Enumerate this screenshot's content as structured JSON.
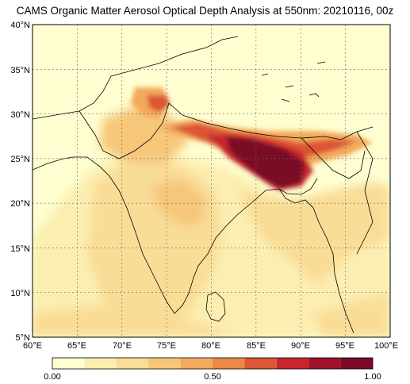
{
  "title": "CAMS Organic Matter Aerosol Optical Depth Analysis at 550nm: 20210116, 00z",
  "map": {
    "lon_range": [
      60,
      100
    ],
    "lat_range": [
      5,
      40
    ],
    "lon_ticks": [
      "60°E",
      "65°E",
      "70°E",
      "75°E",
      "80°E",
      "85°E",
      "90°E",
      "95°E",
      "100°E"
    ],
    "lat_ticks": [
      "40°N",
      "35°N",
      "30°N",
      "25°N",
      "20°N",
      "15°N",
      "10°N",
      "5°N"
    ],
    "gridlines": true
  },
  "colorbar": {
    "labels": [
      "0.00",
      "0.50",
      "1.00"
    ],
    "colors": [
      "#fefed0",
      "#fbeeb0",
      "#f9dc96",
      "#f6c779",
      "#f2aa5c",
      "#ec8845",
      "#dd5535",
      "#c9262c",
      "#a0122c",
      "#7a0a28"
    ]
  },
  "colors": {
    "coast": "#000000",
    "grid": "#666666",
    "low": "#fefed0",
    "medium": "#f2aa5c",
    "high": "#7a0a28"
  }
}
